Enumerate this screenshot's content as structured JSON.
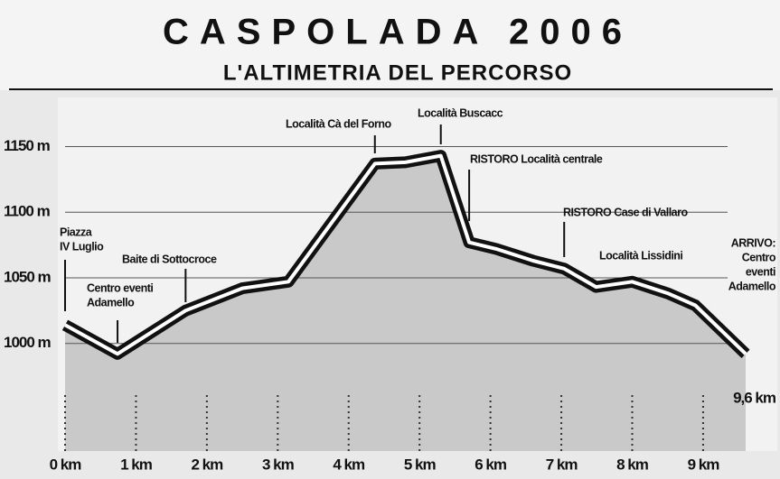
{
  "chart_data": {
    "type": "line",
    "title": "CASPOLADA 2006",
    "subtitle": "L'ALTIMETRIA DEL PERCORSO",
    "x": [
      0,
      0.74,
      1.7,
      2.5,
      3.15,
      4.37,
      4.8,
      5.3,
      5.7,
      6.08,
      6.6,
      7.04,
      7.49,
      8.0,
      8.51,
      8.89,
      9.6
    ],
    "series": [
      {
        "color": "#111111",
        "values": [
          1014,
          992,
          1025,
          1042,
          1047,
          1137,
          1138,
          1143,
          1077,
          1072,
          1063,
          1057,
          1043,
          1047,
          1038,
          1029,
          992
        ]
      }
    ],
    "xlim": [
      0,
      9.6
    ],
    "ylim": [
      918,
      1162
    ],
    "xticks": [
      {
        "value": 0,
        "label": "0 km"
      },
      {
        "value": 1,
        "label": "1 km"
      },
      {
        "value": 2,
        "label": "2 km"
      },
      {
        "value": 3,
        "label": "3 km"
      },
      {
        "value": 4,
        "label": "4 km"
      },
      {
        "value": 5,
        "label": "5 km"
      },
      {
        "value": 6,
        "label": "6 km"
      },
      {
        "value": 7,
        "label": "7 km"
      },
      {
        "value": 8,
        "label": "8 km"
      },
      {
        "value": 9,
        "label": "9 km"
      }
    ],
    "yticks": [
      {
        "value": 1000,
        "label": "1000 m"
      },
      {
        "value": 1050,
        "label": "1050 m"
      },
      {
        "value": 1100,
        "label": "1100 m"
      },
      {
        "value": 1150,
        "label": "1150 m"
      }
    ],
    "grid": true,
    "annotations": [
      {
        "x": 0,
        "text": [
          "Piazza",
          "IV Luglio"
        ]
      },
      {
        "x": 0.74,
        "text": [
          "Centro eventi",
          "Adamello"
        ]
      },
      {
        "x": 1.7,
        "text": [
          "Baite di Sottocroce"
        ]
      },
      {
        "x": 4.37,
        "text": [
          "Località Cà del Forno"
        ]
      },
      {
        "x": 5.3,
        "text": [
          "Località Buscacc"
        ]
      },
      {
        "x": 5.7,
        "text": [
          "RISTORO Località centrale"
        ]
      },
      {
        "x": 7.04,
        "text": [
          "RISTORO Case di Vallaro"
        ]
      },
      {
        "x": 8.3,
        "text": [
          "Località Lissidini"
        ]
      },
      {
        "x": 9.6,
        "text": [
          "ARRIVO:",
          "Centro",
          "eventi",
          "Adamello"
        ]
      },
      {
        "x": 9.6,
        "text": [
          "9,6 km"
        ]
      }
    ]
  }
}
